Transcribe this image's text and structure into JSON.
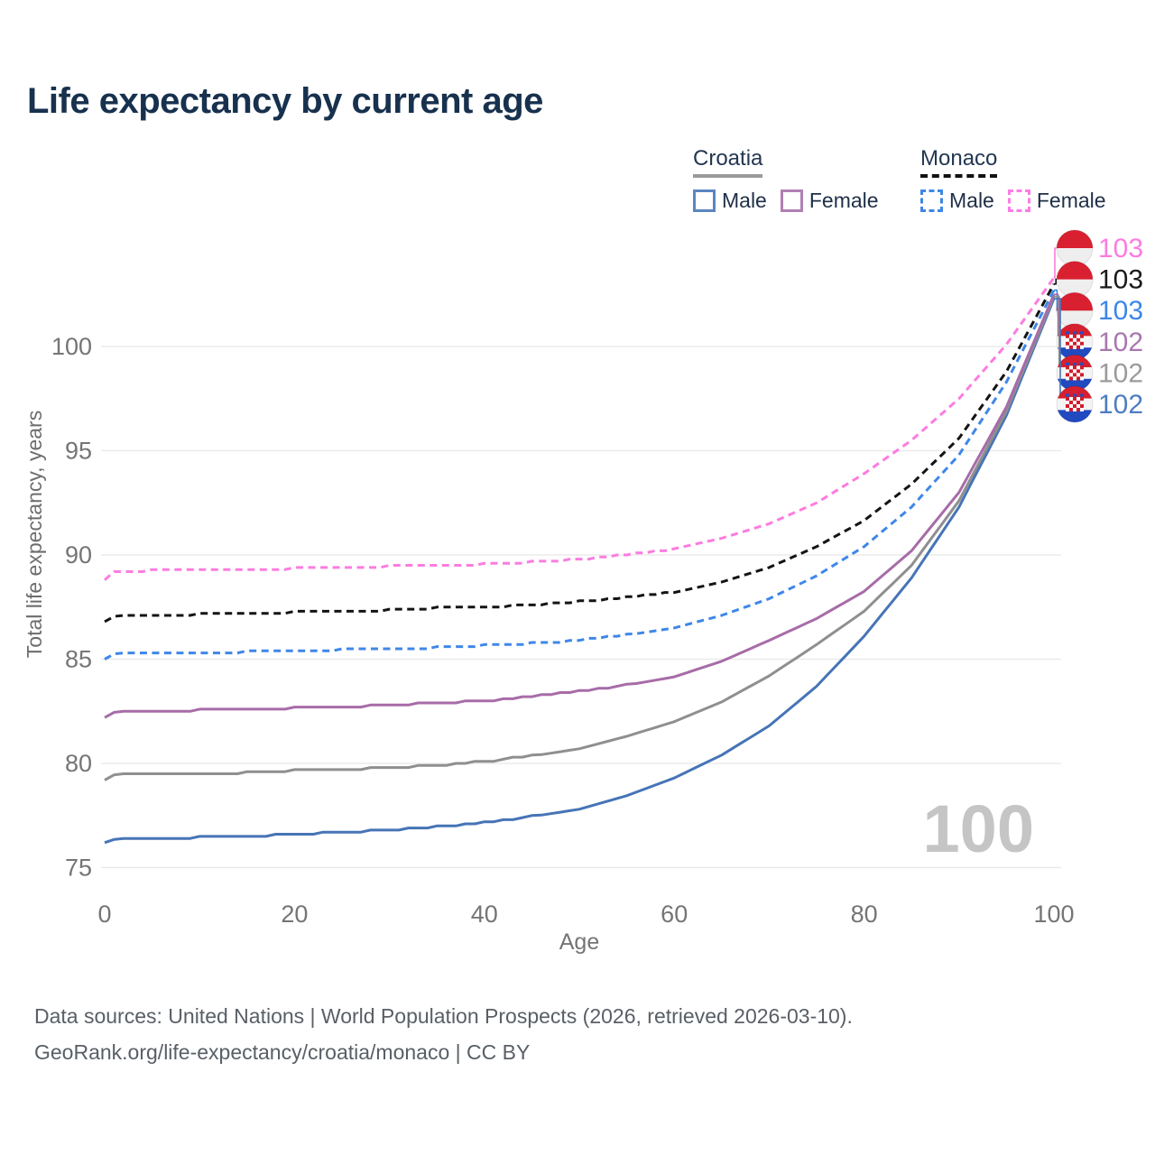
{
  "title": "Life expectancy by current age",
  "legend": {
    "groups": [
      {
        "name": "Croatia",
        "line_style": "solid",
        "underline_color": "#9a9a9a",
        "items": [
          {
            "label": "Male",
            "color": "#5b85c2",
            "dashed": false
          },
          {
            "label": "Female",
            "color": "#b17fb4",
            "dashed": false
          }
        ]
      },
      {
        "name": "Monaco",
        "line_style": "dashed",
        "underline_color": "#111111",
        "items": [
          {
            "label": "Male",
            "color": "#3f87e5",
            "dashed": true
          },
          {
            "label": "Female",
            "color": "#fc7ce4",
            "dashed": true
          }
        ]
      }
    ]
  },
  "chart_data": {
    "type": "line",
    "title": "Life expectancy by current age",
    "xlabel": "Age",
    "ylabel": "Total life expectancy, years",
    "xlim": [
      0,
      100
    ],
    "ylim": [
      75,
      104
    ],
    "xticks": [
      0,
      20,
      40,
      60,
      80,
      100
    ],
    "yticks": [
      75,
      80,
      85,
      90,
      95,
      100
    ],
    "grid": true,
    "legend_position": "top-right",
    "watermark": "100",
    "x": [
      0,
      1,
      5,
      10,
      15,
      20,
      25,
      30,
      35,
      40,
      45,
      50,
      55,
      60,
      65,
      70,
      75,
      80,
      85,
      90,
      95,
      100
    ],
    "series": [
      {
        "name": "Monaco Female",
        "country": "Monaco",
        "sex": "Female",
        "flag": "monaco",
        "color": "#fc7ce0",
        "dashed": true,
        "end_label": "103",
        "label_color": "#fb7be0",
        "values": [
          88.8,
          89.2,
          89.25,
          89.3,
          89.3,
          89.35,
          89.4,
          89.45,
          89.5,
          89.55,
          89.65,
          89.8,
          90.0,
          90.3,
          90.8,
          91.5,
          92.5,
          93.9,
          95.5,
          97.5,
          100.1,
          103.3
        ]
      },
      {
        "name": "Monaco",
        "country": "Monaco",
        "sex": "Both",
        "flag": "monaco",
        "color": "#141414",
        "dashed": true,
        "end_label": "103",
        "label_color": "#1a1a1a",
        "values": [
          86.8,
          87.05,
          87.1,
          87.15,
          87.15,
          87.25,
          87.3,
          87.35,
          87.45,
          87.5,
          87.6,
          87.75,
          87.95,
          88.2,
          88.7,
          89.4,
          90.4,
          91.65,
          93.4,
          95.6,
          98.8,
          103.0
        ]
      },
      {
        "name": "Monaco Male",
        "country": "Monaco",
        "sex": "Male",
        "flag": "monaco",
        "color": "#3f87e8",
        "dashed": true,
        "end_label": "103",
        "label_color": "#3c86e8",
        "values": [
          85.0,
          85.25,
          85.3,
          85.3,
          85.35,
          85.4,
          85.45,
          85.5,
          85.55,
          85.65,
          85.75,
          85.9,
          86.15,
          86.5,
          87.1,
          87.9,
          89.0,
          90.4,
          92.3,
          94.8,
          98.3,
          102.7
        ]
      },
      {
        "name": "Croatia Female",
        "country": "Croatia",
        "sex": "Female",
        "flag": "croatia",
        "color": "#a76ca8",
        "dashed": false,
        "end_label": "102",
        "label_color": "#a877af",
        "values": [
          82.2,
          82.45,
          82.5,
          82.55,
          82.6,
          82.65,
          82.7,
          82.8,
          82.9,
          83.0,
          83.2,
          83.45,
          83.75,
          84.15,
          84.9,
          85.9,
          86.95,
          88.25,
          90.2,
          93.0,
          97.1,
          102.5
        ]
      },
      {
        "name": "Croatia",
        "country": "Croatia",
        "sex": "Both",
        "flag": "croatia",
        "color": "#8f8f8f",
        "dashed": false,
        "end_label": "102",
        "label_color": "#9b9b9b",
        "values": [
          79.2,
          79.45,
          79.5,
          79.5,
          79.55,
          79.65,
          79.7,
          79.8,
          79.9,
          80.1,
          80.35,
          80.7,
          81.3,
          82.0,
          82.95,
          84.2,
          85.7,
          87.3,
          89.5,
          92.6,
          96.9,
          102.4
        ]
      },
      {
        "name": "Croatia Male",
        "country": "Croatia",
        "sex": "Male",
        "flag": "croatia",
        "color": "#4674b6",
        "dashed": false,
        "end_label": "102",
        "label_color": "#4d7dc0",
        "values": [
          76.2,
          76.35,
          76.4,
          76.45,
          76.5,
          76.6,
          76.7,
          76.8,
          76.95,
          77.15,
          77.45,
          77.8,
          78.45,
          79.3,
          80.4,
          81.8,
          83.7,
          86.1,
          88.9,
          92.3,
          96.7,
          102.3
        ]
      }
    ]
  },
  "footer": {
    "line1": "Data sources: United Nations | World Population Prospects (2026, retrieved 2026-03-10).",
    "line2": "GeoRank.org/life-expectancy/croatia/monaco | CC BY"
  }
}
